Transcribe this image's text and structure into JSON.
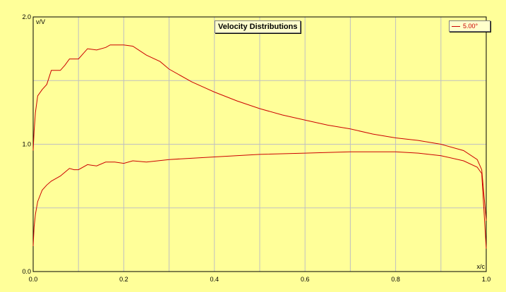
{
  "chart_data": {
    "type": "line",
    "title": "Velocity Distributions",
    "xlabel": "x/c",
    "ylabel": "v/V",
    "xlim": [
      0,
      1
    ],
    "ylim": [
      0,
      2
    ],
    "x_ticks": [
      "0.0",
      "0.2",
      "0.4",
      "0.6",
      "0.8",
      "1.0"
    ],
    "y_ticks": [
      "0.0",
      "1.0",
      "2.0"
    ],
    "grid": true,
    "legend": "top-right",
    "colors": {
      "line": "#cc0000",
      "background": "#ffff99",
      "grid": "#c0c0c0"
    },
    "series": [
      {
        "name": "5.00°",
        "segments": [
          {
            "surface": "upper",
            "x": [
              0.0,
              0.002,
              0.005,
              0.01,
              0.02,
              0.03,
              0.04,
              0.05,
              0.06,
              0.07,
              0.08,
              0.09,
              0.1,
              0.12,
              0.14,
              0.16,
              0.17,
              0.18,
              0.2,
              0.22,
              0.25,
              0.28,
              0.3,
              0.35,
              0.4,
              0.45,
              0.5,
              0.55,
              0.6,
              0.65,
              0.7,
              0.75,
              0.8,
              0.85,
              0.9,
              0.95,
              0.98,
              0.99,
              1.0
            ],
            "y": [
              0.95,
              1.1,
              1.25,
              1.38,
              1.43,
              1.47,
              1.58,
              1.58,
              1.58,
              1.62,
              1.67,
              1.67,
              1.67,
              1.75,
              1.74,
              1.76,
              1.78,
              1.78,
              1.78,
              1.77,
              1.7,
              1.65,
              1.59,
              1.49,
              1.41,
              1.34,
              1.28,
              1.23,
              1.19,
              1.15,
              1.12,
              1.08,
              1.05,
              1.03,
              1.0,
              0.95,
              0.88,
              0.8,
              0.4
            ]
          },
          {
            "surface": "lower",
            "x": [
              0.0,
              0.002,
              0.005,
              0.01,
              0.02,
              0.03,
              0.04,
              0.05,
              0.06,
              0.07,
              0.08,
              0.09,
              0.1,
              0.12,
              0.14,
              0.16,
              0.18,
              0.2,
              0.22,
              0.25,
              0.3,
              0.4,
              0.5,
              0.6,
              0.7,
              0.8,
              0.85,
              0.9,
              0.95,
              0.98,
              0.99,
              1.0
            ],
            "y": [
              0.2,
              0.35,
              0.45,
              0.55,
              0.64,
              0.68,
              0.71,
              0.73,
              0.75,
              0.78,
              0.81,
              0.8,
              0.8,
              0.84,
              0.83,
              0.86,
              0.86,
              0.85,
              0.87,
              0.86,
              0.88,
              0.9,
              0.92,
              0.93,
              0.94,
              0.94,
              0.93,
              0.91,
              0.87,
              0.82,
              0.77,
              0.18
            ]
          }
        ]
      }
    ]
  }
}
